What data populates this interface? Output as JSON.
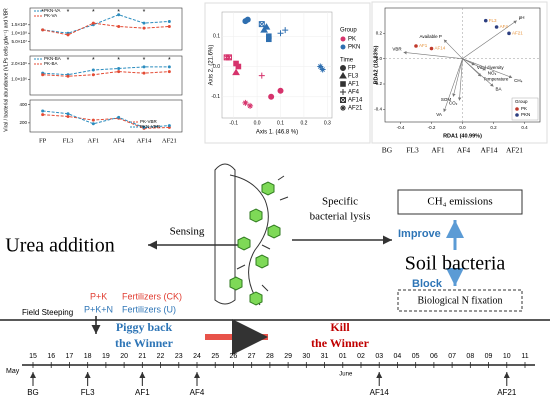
{
  "line_panel": {
    "y_title": "Viral / bacterial abundance (VLPs cells gdw⁻¹) and VBR",
    "categories": [
      "FP",
      "FL3",
      "AF1",
      "AF4",
      "AF14",
      "AF21"
    ],
    "subplots": [
      {
        "ylim": [
          0,
          250000000
        ],
        "yticks": [
          {
            "value": 50000000,
            "label": "5.0×10⁷"
          },
          {
            "value": 100000000,
            "label": "1.0×10⁸"
          },
          {
            "value": 150000000,
            "label": "1.5×10⁸"
          }
        ],
        "significance": [
          "*",
          "*",
          "*",
          "*",
          "*",
          null
        ],
        "series": [
          {
            "name": "PKN-VA",
            "color": "#2b8cbe",
            "values": [
              120000000,
              100000000,
              150000000,
              210000000,
              160000000,
              170000000
            ]
          },
          {
            "name": "PK-VA",
            "color": "#e34a33",
            "values": [
              120000000,
              90000000,
              160000000,
              140000000,
              130000000,
              140000000
            ]
          }
        ]
      },
      {
        "ylim": [
          0,
          2500000
        ],
        "yticks": [
          {
            "value": 1000000,
            "label": "1.0×10⁶"
          },
          {
            "value": 2000000,
            "label": "2.0×10⁶"
          }
        ],
        "significance": [
          null,
          "*",
          "*",
          "*",
          "*",
          "*"
        ],
        "series": [
          {
            "name": "PKN-BA",
            "color": "#2b8cbe",
            "values": [
              1400000,
              1300000,
              1600000,
              1700000,
              1800000,
              1800000
            ]
          },
          {
            "name": "PK-BA",
            "color": "#e34a33",
            "values": [
              1300000,
              1200000,
              1300000,
              1500000,
              1400000,
              1500000
            ]
          }
        ]
      },
      {
        "ylim": [
          100,
          450
        ],
        "yticks": [
          200,
          400
        ],
        "significance": [
          null,
          null,
          null,
          null,
          null,
          null
        ],
        "series": [
          {
            "name": "PK-VBR",
            "color": "#e34a33",
            "values": [
              290,
              270,
              230,
              250,
              140,
              150
            ]
          },
          {
            "name": "PKN-VBR",
            "color": "#2b8cbe",
            "values": [
              330,
              300,
              190,
              260,
              150,
              170
            ]
          }
        ]
      }
    ]
  },
  "pcoa": {
    "x_title": "Axis 1. (46.8 %)",
    "y_title": "Axis 2. (21.6%)",
    "xlim": [
      -0.15,
      0.32
    ],
    "ylim": [
      -0.17,
      0.18
    ],
    "xticks": [
      -0.1,
      {
        "value": 0,
        "label": "0.0"
      },
      0.1,
      0.2,
      0.3
    ],
    "yticks": [
      -0.1,
      {
        "value": 0,
        "label": "0.0"
      },
      0.1
    ],
    "group_title": "Group",
    "groups": [
      {
        "name": "PK",
        "color": "#d6336c"
      },
      {
        "name": "PKN",
        "color": "#2f6fb0"
      }
    ],
    "time_title": "Time",
    "times": [
      "FP",
      "FL3",
      "AF1",
      "AF4",
      "AF14",
      "AF21"
    ],
    "points": [
      {
        "group": "PKN",
        "time": "FP",
        "x": -0.05,
        "y": 0.15
      },
      {
        "group": "PKN",
        "time": "FP",
        "x": -0.04,
        "y": 0.155
      },
      {
        "group": "PKN",
        "time": "FL3",
        "x": 0.03,
        "y": 0.12
      },
      {
        "group": "PKN",
        "time": "FL3",
        "x": 0.04,
        "y": 0.13
      },
      {
        "group": "PKN",
        "time": "AF1",
        "x": 0.05,
        "y": 0.09
      },
      {
        "group": "PKN",
        "time": "AF1",
        "x": 0.05,
        "y": 0.1
      },
      {
        "group": "PKN",
        "time": "AF4",
        "x": 0.12,
        "y": 0.12
      },
      {
        "group": "PKN",
        "time": "AF4",
        "x": 0.1,
        "y": 0.11
      },
      {
        "group": "PKN",
        "time": "AF14",
        "x": 0.02,
        "y": 0.14
      },
      {
        "group": "PKN",
        "time": "AF21",
        "x": 0.27,
        "y": 0.0
      },
      {
        "group": "PKN",
        "time": "AF21",
        "x": 0.28,
        "y": -0.01
      },
      {
        "group": "PK",
        "time": "AF14",
        "x": -0.13,
        "y": 0.03
      },
      {
        "group": "PK",
        "time": "AF14",
        "x": -0.12,
        "y": 0.03
      },
      {
        "group": "PK",
        "time": "AF1",
        "x": -0.08,
        "y": 0.0
      },
      {
        "group": "PK",
        "time": "AF1",
        "x": -0.09,
        "y": 0.01
      },
      {
        "group": "PK",
        "time": "FL3",
        "x": -0.09,
        "y": -0.02
      },
      {
        "group": "PK",
        "time": "AF4",
        "x": 0.02,
        "y": -0.03
      },
      {
        "group": "PK",
        "time": "AF21",
        "x": -0.05,
        "y": -0.12
      },
      {
        "group": "PK",
        "time": "AF21",
        "x": -0.03,
        "y": -0.13
      },
      {
        "group": "PK",
        "time": "FP",
        "x": 0.06,
        "y": -0.1
      },
      {
        "group": "PK",
        "time": "FP",
        "x": 0.1,
        "y": -0.08
      }
    ]
  },
  "rda": {
    "x_title": "RDA1 (40.99%)",
    "y_title": "RDA2 (18.83%)",
    "xlim": [
      -0.5,
      0.5
    ],
    "ylim": [
      -0.5,
      0.4
    ],
    "xticks": [
      -0.4,
      -0.2,
      {
        "value": 0,
        "label": "0.0"
      },
      0.2,
      0.4
    ],
    "yticks": [
      -0.4,
      -0.2,
      {
        "value": 0,
        "label": "0.0"
      },
      0.2
    ],
    "arrows": [
      {
        "label": "pH",
        "x": 0.35,
        "y": 0.3
      },
      {
        "label": "Available P",
        "x": -0.12,
        "y": 0.15
      },
      {
        "label": "VBR",
        "x": -0.38,
        "y": 0.05
      },
      {
        "label": "Viral diversity",
        "x": 0.08,
        "y": -0.05
      },
      {
        "label": "NO₃⁻",
        "x": 0.15,
        "y": -0.09
      },
      {
        "label": "Temperature",
        "x": 0.12,
        "y": -0.14
      },
      {
        "label": "CH₄",
        "x": 0.32,
        "y": -0.15
      },
      {
        "label": "BA",
        "x": 0.2,
        "y": -0.22
      },
      {
        "label": "SOM",
        "x": -0.06,
        "y": -0.3
      },
      {
        "label": "CO₂",
        "x": -0.02,
        "y": -0.33
      },
      {
        "label": "VA",
        "x": -0.12,
        "y": -0.42
      }
    ],
    "samples": [
      {
        "label": "FL3",
        "group": "PKN",
        "x": 0.15,
        "y": 0.3
      },
      {
        "label": "AF4",
        "group": "PKN",
        "x": 0.22,
        "y": 0.25
      },
      {
        "label": "AF21",
        "group": "PKN",
        "x": 0.3,
        "y": 0.2
      },
      {
        "label": "AF1",
        "group": "PK",
        "x": -0.3,
        "y": 0.1
      },
      {
        "label": "AF14",
        "group": "PK",
        "x": -0.2,
        "y": 0.08
      }
    ],
    "legend_title": "Group",
    "groups": [
      {
        "name": "PK",
        "color": "#c0392b"
      },
      {
        "name": "PKN",
        "color": "#2c3e80"
      }
    ]
  },
  "stage_labels": [
    "BG",
    "FL3",
    "AF1",
    "AF4",
    "AF14",
    "AF21"
  ],
  "diagram": {
    "left": "Urea addition",
    "sensing": "Sensing",
    "lysis": [
      "Specific",
      "bacterial lysis"
    ],
    "right": "Soil bacteria",
    "ch4": "CH₄ emissions",
    "improve": "Improve",
    "block": "Block",
    "nfix": "Biological N fixation",
    "ck": [
      "P+K",
      "Fertilizers (CK)"
    ],
    "u": [
      "P+K+N",
      "Fertilizers (U)"
    ],
    "steeping": "Field Steeping",
    "piggy": [
      "Piggy back",
      "the Winner"
    ],
    "kill": [
      "Kill",
      "the Winner"
    ]
  },
  "timeline": {
    "months": [
      "May",
      "June"
    ],
    "days": [
      "15",
      "16",
      "17",
      "18",
      "19",
      "20",
      "21",
      "22",
      "23",
      "24",
      "25",
      "26",
      "27",
      "28",
      "29",
      "30",
      "31",
      "01",
      "02",
      "03",
      "04",
      "05",
      "06",
      "07",
      "08",
      "09",
      "10",
      "11"
    ],
    "events": [
      "BG",
      null,
      null,
      "FL3",
      null,
      null,
      "AF1",
      null,
      null,
      "AF4",
      null,
      null,
      null,
      null,
      null,
      null,
      null,
      null,
      null,
      "AF14",
      null,
      null,
      null,
      null,
      null,
      null,
      "AF21",
      null
    ]
  }
}
